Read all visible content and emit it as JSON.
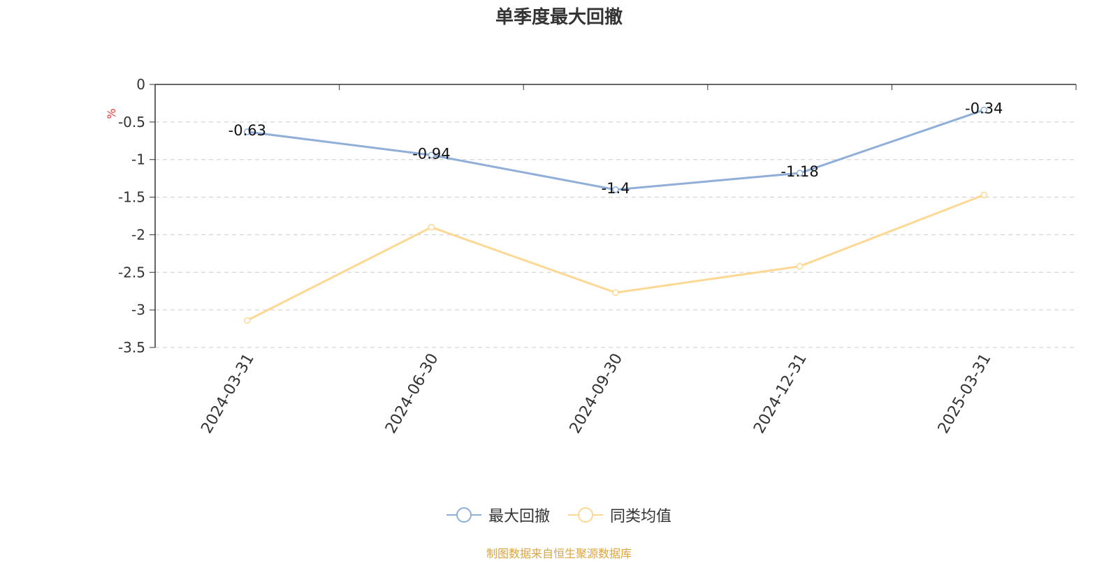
{
  "chart_data": {
    "type": "line",
    "title": "单季度最大回撤",
    "ylabel": "%",
    "xlabel": "",
    "categories": [
      "2024-03-31",
      "2024-06-30",
      "2024-09-30",
      "2024-12-31",
      "2025-03-31"
    ],
    "ylim": [
      -3.5,
      0
    ],
    "yticks": [
      0,
      -0.5,
      -1,
      -1.5,
      -2,
      -2.5,
      -3,
      -3.5
    ],
    "ytick_labels": [
      "0",
      "-0.5",
      "-1",
      "-1.5",
      "-2",
      "-2.5",
      "-3",
      "-3.5"
    ],
    "grid": true,
    "legend_position": "bottom",
    "series": [
      {
        "name": "最大回撤",
        "values": [
          -0.63,
          -0.94,
          -1.4,
          -1.18,
          -0.34
        ],
        "labels": [
          "-0.63",
          "-0.94",
          "-1.4",
          "-1.18",
          "-0.34"
        ],
        "color": "#8faed8",
        "show_labels": true
      },
      {
        "name": "同类均值",
        "values": [
          -3.14,
          -1.9,
          -2.77,
          -2.42,
          -1.47
        ],
        "color": "#fdd893",
        "show_labels": false
      }
    ]
  },
  "footer": {
    "source": "制图数据来自恒生聚源数据库"
  }
}
